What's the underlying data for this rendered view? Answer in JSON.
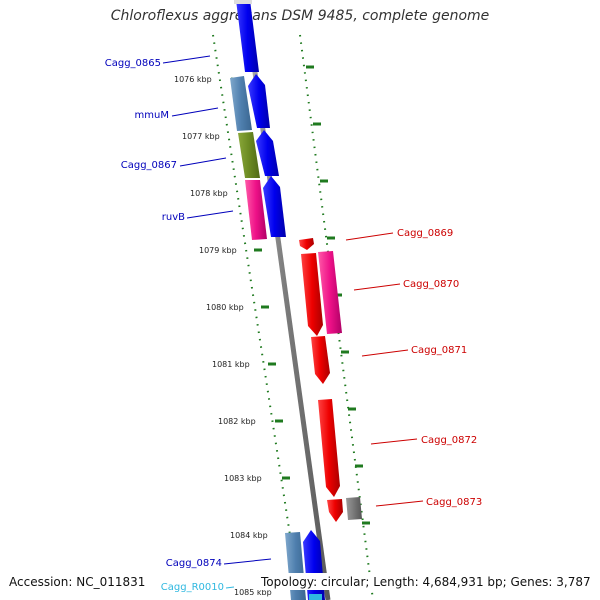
{
  "title": "Chloroflexus aggregans DSM 9485, complete genome",
  "footer": {
    "accession": "Accession: NC_011831",
    "topology": "Topology: circular; Length: 4,684,931 bp; Genes: 3,787"
  },
  "colors": {
    "backbone": "#8c8c8c",
    "tick": "#1f7a1f",
    "forward_label": "#0000bb",
    "reverse_label": "#cc0000",
    "rna_label": "#2fb8e0"
  },
  "kbp_ticks": [
    {
      "label": "1076 kbp"
    },
    {
      "label": "1077 kbp"
    },
    {
      "label": "1078 kbp"
    },
    {
      "label": "1079 kbp"
    },
    {
      "label": "1080 kbp"
    },
    {
      "label": "1081 kbp"
    },
    {
      "label": "1082 kbp"
    },
    {
      "label": "1083 kbp"
    },
    {
      "label": "1084 kbp"
    },
    {
      "label": "1085 kbp"
    }
  ],
  "forward_labels": [
    {
      "name": "Cagg_0865",
      "color": "#0000bb"
    },
    {
      "name": "mmuM",
      "color": "#0000bb"
    },
    {
      "name": "Cagg_0867",
      "color": "#0000bb"
    },
    {
      "name": "ruvB",
      "color": "#0000bb"
    },
    {
      "name": "Cagg_0874",
      "color": "#0000bb"
    },
    {
      "name": "Cagg_R0010",
      "color": "#2fb8e0"
    }
  ],
  "reverse_labels": [
    {
      "name": "Cagg_0869",
      "color": "#cc0000"
    },
    {
      "name": "Cagg_0870",
      "color": "#cc0000"
    },
    {
      "name": "Cagg_0871",
      "color": "#cc0000"
    },
    {
      "name": "Cagg_0872",
      "color": "#cc0000"
    },
    {
      "name": "Cagg_0873",
      "color": "#cc0000"
    }
  ]
}
